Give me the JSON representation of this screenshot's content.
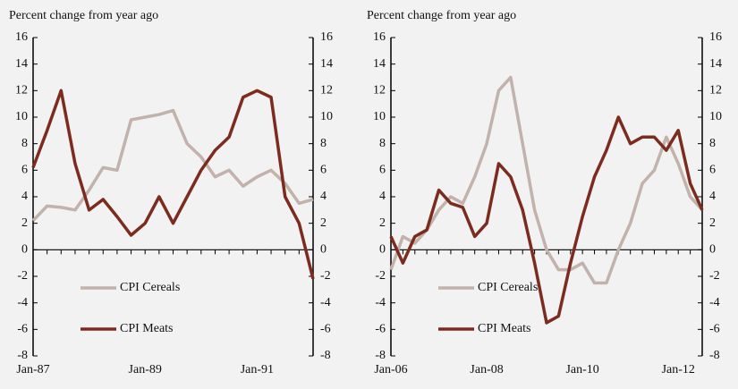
{
  "chart_data": [
    {
      "type": "line",
      "ylabel": "Percent change from year ago",
      "categories": [
        "Jan-87",
        null,
        null,
        null,
        null,
        null,
        null,
        null,
        "Jan-89",
        null,
        null,
        null,
        null,
        null,
        null,
        null,
        "Jan-91",
        null,
        null,
        null,
        null
      ],
      "series": [
        {
          "name": "CPI Cereals",
          "color": "#c2b2ac",
          "values": [
            2.2,
            3.3,
            3.2,
            3.0,
            4.5,
            6.2,
            6.0,
            9.8,
            10.0,
            10.2,
            10.5,
            8.0,
            7.0,
            5.5,
            6.0,
            4.8,
            5.5,
            6.0,
            5.0,
            3.5,
            3.8
          ]
        },
        {
          "name": "CPI Meats",
          "color": "#7b2c1e",
          "values": [
            6.2,
            9.0,
            12.0,
            6.5,
            3.0,
            3.8,
            2.5,
            1.1,
            2.0,
            4.0,
            2.0,
            4.0,
            6.0,
            7.5,
            8.5,
            11.5,
            12.0,
            11.5,
            4.0,
            2.0,
            -2.2
          ]
        }
      ],
      "ylim": [
        -8,
        16
      ],
      "yticks": [
        -8,
        -6,
        -4,
        -2,
        0,
        2,
        4,
        6,
        8,
        10,
        12,
        14,
        16
      ],
      "y2lim": [
        -8,
        16
      ],
      "y2ticks": [
        -8,
        -6,
        -4,
        -2,
        0,
        2,
        4,
        6,
        8,
        10,
        12,
        14,
        16
      ],
      "legend": "lower-left",
      "grid": false
    },
    {
      "type": "line",
      "ylabel": "Percent change from year ago",
      "categories": [
        "Jan-06",
        null,
        null,
        null,
        null,
        null,
        null,
        null,
        "Jan-08",
        null,
        null,
        null,
        null,
        null,
        null,
        null,
        "Jan-10",
        null,
        null,
        null,
        null,
        null,
        null,
        null,
        "Jan-12",
        null,
        null
      ],
      "series": [
        {
          "name": "CPI Cereals",
          "color": "#c2b2ac",
          "values": [
            -1.5,
            1.0,
            0.5,
            1.5,
            3.0,
            4.0,
            3.5,
            5.5,
            8.0,
            12.0,
            13.0,
            8.0,
            3.0,
            0.0,
            -1.5,
            -1.5,
            -1.0,
            -2.5,
            -2.5,
            0.0,
            2.0,
            5.0,
            6.0,
            8.5,
            6.5,
            4.0,
            3.0
          ]
        },
        {
          "name": "CPI Meats",
          "color": "#7b2c1e",
          "values": [
            1.0,
            -1.0,
            1.0,
            1.5,
            4.5,
            3.5,
            3.2,
            1.0,
            2.0,
            6.5,
            5.5,
            3.0,
            -1.0,
            -5.5,
            -5.0,
            -1.0,
            2.5,
            5.5,
            7.5,
            10.0,
            8.0,
            8.5,
            8.5,
            7.5,
            9.0,
            5.0,
            3.0
          ]
        }
      ],
      "ylim": [
        -8,
        16
      ],
      "yticks": [
        -8,
        -6,
        -4,
        -2,
        0,
        2,
        4,
        6,
        8,
        10,
        12,
        14,
        16
      ],
      "y2lim": [
        -8,
        16
      ],
      "y2ticks": [
        -8,
        -6,
        -4,
        -2,
        0,
        2,
        4,
        6,
        8,
        10,
        12,
        14,
        16
      ],
      "legend": "lower-left",
      "grid": false
    }
  ]
}
